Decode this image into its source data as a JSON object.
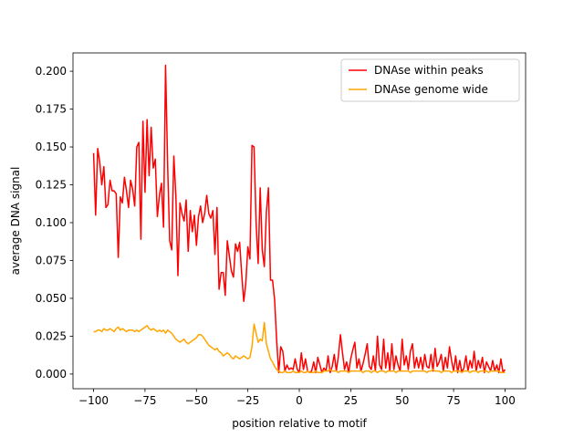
{
  "chart_data": {
    "type": "line",
    "xlabel": "position relative to motif",
    "ylabel": "average DNA signal",
    "x": [
      -100,
      -99,
      -98,
      -97,
      -96,
      -95,
      -94,
      -93,
      -92,
      -91,
      -90,
      -89,
      -88,
      -87,
      -86,
      -85,
      -84,
      -83,
      -82,
      -81,
      -80,
      -79,
      -78,
      -77,
      -76,
      -75,
      -74,
      -73,
      -72,
      -71,
      -70,
      -69,
      -68,
      -67,
      -66,
      -65,
      -64,
      -63,
      -62,
      -61,
      -60,
      -59,
      -58,
      -57,
      -56,
      -55,
      -54,
      -53,
      -52,
      -51,
      -50,
      -49,
      -48,
      -47,
      -46,
      -45,
      -44,
      -43,
      -42,
      -41,
      -40,
      -39,
      -38,
      -37,
      -36,
      -35,
      -34,
      -33,
      -32,
      -31,
      -30,
      -29,
      -28,
      -27,
      -26,
      -25,
      -24,
      -23,
      -22,
      -21,
      -20,
      -19,
      -18,
      -17,
      -16,
      -15,
      -14,
      -13,
      -12,
      -11,
      -10,
      -9,
      -8,
      -7,
      -6,
      -5,
      -4,
      -3,
      -2,
      -1,
      0,
      1,
      2,
      3,
      4,
      5,
      6,
      7,
      8,
      9,
      10,
      11,
      12,
      13,
      14,
      15,
      16,
      17,
      18,
      19,
      20,
      21,
      22,
      23,
      24,
      25,
      26,
      27,
      28,
      29,
      30,
      31,
      32,
      33,
      34,
      35,
      36,
      37,
      38,
      39,
      40,
      41,
      42,
      43,
      44,
      45,
      46,
      47,
      48,
      49,
      50,
      51,
      52,
      53,
      54,
      55,
      56,
      57,
      58,
      59,
      60,
      61,
      62,
      63,
      64,
      65,
      66,
      67,
      68,
      69,
      70,
      71,
      72,
      73,
      74,
      75,
      76,
      77,
      78,
      79,
      80,
      81,
      82,
      83,
      84,
      85,
      86,
      87,
      88,
      89,
      90,
      91,
      92,
      93,
      94,
      95,
      96,
      97,
      98,
      99,
      100
    ],
    "series": [
      {
        "name": "DNAse within peaks",
        "color": "#ff0000",
        "values": [
          0.146,
          0.105,
          0.149,
          0.14,
          0.125,
          0.137,
          0.11,
          0.112,
          0.128,
          0.121,
          0.121,
          0.119,
          0.077,
          0.117,
          0.113,
          0.13,
          0.121,
          0.11,
          0.128,
          0.122,
          0.111,
          0.15,
          0.153,
          0.089,
          0.167,
          0.12,
          0.168,
          0.131,
          0.163,
          0.136,
          0.142,
          0.104,
          0.118,
          0.126,
          0.097,
          0.204,
          0.138,
          0.088,
          0.082,
          0.144,
          0.118,
          0.065,
          0.113,
          0.106,
          0.101,
          0.115,
          0.081,
          0.108,
          0.094,
          0.105,
          0.085,
          0.104,
          0.111,
          0.1,
          0.106,
          0.118,
          0.106,
          0.103,
          0.108,
          0.079,
          0.11,
          0.056,
          0.067,
          0.067,
          0.052,
          0.088,
          0.078,
          0.068,
          0.064,
          0.086,
          0.081,
          0.087,
          0.066,
          0.048,
          0.06,
          0.084,
          0.076,
          0.151,
          0.15,
          0.1,
          0.073,
          0.123,
          0.082,
          0.071,
          0.107,
          0.123,
          0.062,
          0.062,
          0.049,
          0.022,
          0.001,
          0.018,
          0.015,
          0.002,
          0.006,
          0.003,
          0.004,
          0.003,
          0.01,
          0.003,
          0.001,
          0.014,
          0.003,
          0.01,
          0.002,
          0.001,
          0.002,
          0.008,
          0.001,
          0.011,
          0.006,
          0.001,
          0.004,
          0.002,
          0.012,
          0.001,
          0.005,
          0.013,
          0.002,
          0.012,
          0.026,
          0.014,
          0.003,
          0.008,
          0.001,
          0.01,
          0.016,
          0.021,
          0.004,
          0.01,
          0.002,
          0.007,
          0.013,
          0.02,
          0.005,
          0.003,
          0.012,
          0.002,
          0.025,
          0.006,
          0.003,
          0.023,
          0.004,
          0.014,
          0.002,
          0.02,
          0.003,
          0.012,
          0.006,
          0.002,
          0.023,
          0.006,
          0.012,
          0.003,
          0.015,
          0.02,
          0.004,
          0.011,
          0.004,
          0.011,
          0.003,
          0.013,
          0.005,
          0.004,
          0.013,
          0.002,
          0.017,
          0.005,
          0.008,
          0.013,
          0.002,
          0.011,
          0.004,
          0.018,
          0.009,
          0.002,
          0.012,
          0.001,
          0.009,
          0.001,
          0.004,
          0.012,
          0.002,
          0.009,
          0.004,
          0.015,
          0.002,
          0.009,
          0.004,
          0.011,
          0.001,
          0.008,
          0.005,
          0.002,
          0.009,
          0.002,
          0.006,
          0.001,
          0.01,
          0.001,
          0.003
        ]
      },
      {
        "name": "DNAse genome wide",
        "color": "#ffa500",
        "values": [
          0.028,
          0.028,
          0.029,
          0.029,
          0.028,
          0.03,
          0.029,
          0.029,
          0.03,
          0.029,
          0.028,
          0.03,
          0.031,
          0.029,
          0.03,
          0.029,
          0.028,
          0.029,
          0.029,
          0.029,
          0.028,
          0.029,
          0.028,
          0.029,
          0.03,
          0.031,
          0.032,
          0.03,
          0.029,
          0.03,
          0.029,
          0.028,
          0.029,
          0.028,
          0.029,
          0.027,
          0.029,
          0.028,
          0.027,
          0.025,
          0.023,
          0.022,
          0.021,
          0.022,
          0.023,
          0.021,
          0.02,
          0.021,
          0.022,
          0.023,
          0.024,
          0.026,
          0.026,
          0.025,
          0.023,
          0.021,
          0.019,
          0.018,
          0.017,
          0.016,
          0.017,
          0.015,
          0.014,
          0.012,
          0.013,
          0.014,
          0.013,
          0.011,
          0.01,
          0.012,
          0.011,
          0.01,
          0.011,
          0.012,
          0.011,
          0.01,
          0.011,
          0.018,
          0.033,
          0.027,
          0.021,
          0.023,
          0.022,
          0.034,
          0.02,
          0.015,
          0.01,
          0.008,
          0.005,
          0.003,
          0.002,
          0.001,
          0.001,
          0.002,
          0.001,
          0.001,
          0.001,
          0.002,
          0.001,
          0.001,
          0.001,
          0.002,
          0.001,
          0.001,
          0.002,
          0.001,
          0.001,
          0.001,
          0.002,
          0.001,
          0.001,
          0.001,
          0.002,
          0.002,
          0.002,
          0.003,
          0.002,
          0.002,
          0.002,
          0.001,
          0.002,
          0.002,
          0.002,
          0.002,
          0.001,
          0.002,
          0.002,
          0.002,
          0.002,
          0.002,
          0.002,
          0.001,
          0.002,
          0.002,
          0.002,
          0.001,
          0.002,
          0.002,
          0.001,
          0.002,
          0.002,
          0.002,
          0.001,
          0.002,
          0.002,
          0.002,
          0.002,
          0.001,
          0.002,
          0.002,
          0.002,
          0.002,
          0.002,
          0.002,
          0.001,
          0.002,
          0.002,
          0.002,
          0.002,
          0.002,
          0.002,
          0.002,
          0.001,
          0.002,
          0.002,
          0.003,
          0.002,
          0.002,
          0.002,
          0.001,
          0.002,
          0.002,
          0.002,
          0.002,
          0.001,
          0.002,
          0.002,
          0.002,
          0.002,
          0.001,
          0.002,
          0.002,
          0.002,
          0.001,
          0.002,
          0.002,
          0.002,
          0.001,
          0.002,
          0.002,
          0.002,
          0.002,
          0.001,
          0.002,
          0.002,
          0.002,
          0.002,
          0.002,
          0.001,
          0.001,
          0.001
        ]
      }
    ],
    "xlim": [
      -110,
      110
    ],
    "ylim": [
      -0.0097,
      0.2121
    ],
    "xticks": [
      {
        "value": -100,
        "label": "−100"
      },
      {
        "value": -75,
        "label": "−75"
      },
      {
        "value": -50,
        "label": "−50"
      },
      {
        "value": -25,
        "label": "−25"
      },
      0,
      25,
      50,
      75,
      100
    ],
    "yticks": [
      {
        "value": 0,
        "label": "0.000"
      },
      0.025,
      {
        "value": 0.05,
        "label": "0.050"
      },
      0.075,
      {
        "value": 0.1,
        "label": "0.100"
      },
      0.125,
      {
        "value": 0.15,
        "label": "0.150"
      },
      0.175,
      {
        "value": 0.2,
        "label": "0.200"
      }
    ],
    "legend": "upper right"
  }
}
